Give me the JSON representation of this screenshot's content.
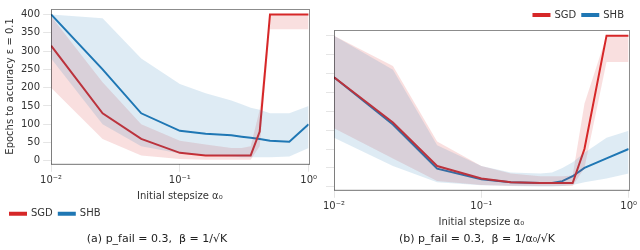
{
  "chart_data": [
    {
      "type": "line",
      "title": "(a) p_fail = 0.3,  β = 1/√K",
      "xlabel": "Initial stepsize α₀",
      "ylabel": "Epochs to accuracy ε = 0.1",
      "log": "x",
      "grid": false,
      "legend": "lower left",
      "xlim": [
        0.01,
        1
      ],
      "xticks": [
        {
          "value": 0.01,
          "label": "10⁻²"
        },
        {
          "value": 0.1,
          "label": "10⁻¹"
        },
        {
          "value": 1,
          "label": "10⁰"
        }
      ],
      "ylim": [
        -8,
        415
      ],
      "yticks": [
        0,
        50,
        100,
        150,
        200,
        250,
        300,
        350,
        400
      ],
      "x": [
        0.01,
        0.025118864315095794,
        0.05011872336272722,
        0.1,
        0.15848931924611134,
        0.25118864315095796,
        0.3019951720402016,
        0.35481338923357547,
        0.4168693834703354,
        0.5011872336272722,
        0.7079457843841379,
        1
      ],
      "series": [
        {
          "name": "SGD",
          "color": "#d62728",
          "values": [
            315,
            130,
            60,
            22,
            15,
            15,
            15,
            15,
            80,
            400,
            400,
            400
          ],
          "lower": [
            200,
            60,
            15,
            5,
            3,
            3,
            3,
            3,
            40,
            360,
            360,
            360
          ],
          "upper": [
            395,
            215,
            100,
            55,
            45,
            35,
            35,
            40,
            140,
            400,
            400,
            400
          ]
        },
        {
          "name": "SHB",
          "color": "#1f77b4",
          "values": [
            400,
            250,
            130,
            82,
            74,
            70,
            66,
            63,
            60,
            55,
            52,
            100
          ],
          "lower": [
            280,
            100,
            40,
            20,
            15,
            12,
            10,
            10,
            10,
            10,
            12,
            35
          ],
          "upper": [
            400,
            390,
            280,
            210,
            185,
            165,
            155,
            145,
            140,
            130,
            130,
            150
          ]
        }
      ]
    },
    {
      "type": "line",
      "title": "(b) p_fail = 0.3,  β = 1/α₀/√K",
      "xlabel": "Initial stepsize α₀",
      "log": "x",
      "grid": false,
      "legend": "upper right",
      "tick_labels": "x",
      "xlim": [
        0.01,
        1
      ],
      "xticks": [
        {
          "value": 0.01,
          "label": "10⁻²"
        },
        {
          "value": 0.1,
          "label": "10⁻¹"
        },
        {
          "value": 1,
          "label": "10⁰"
        }
      ],
      "ylim": [
        -8,
        415
      ],
      "yticks": [
        0,
        50,
        100,
        150,
        200,
        250,
        300,
        350,
        400
      ],
      "x": [
        0.01,
        0.025118864315095794,
        0.05011872336272722,
        0.1,
        0.15848931924611134,
        0.25118864315095796,
        0.3019951720402016,
        0.35481338923357547,
        0.4168693834703354,
        0.5011872336272722,
        0.7079457843841379,
        1
      ],
      "series": [
        {
          "name": "SGD",
          "color": "#d62728",
          "values": [
            290,
            170,
            55,
            22,
            12,
            10,
            10,
            10,
            10,
            100,
            400,
            400
          ],
          "lower": [
            155,
            75,
            15,
            5,
            3,
            2,
            2,
            2,
            2,
            50,
            330,
            330
          ],
          "upper": [
            400,
            320,
            120,
            55,
            35,
            28,
            28,
            28,
            30,
            220,
            400,
            400
          ]
        },
        {
          "name": "SHB",
          "color": "#1f77b4",
          "values": [
            290,
            165,
            48,
            20,
            12,
            10,
            10,
            15,
            28,
            50,
            75,
            100
          ],
          "lower": [
            130,
            55,
            12,
            4,
            2,
            1,
            1,
            2,
            5,
            12,
            22,
            35
          ],
          "upper": [
            400,
            310,
            110,
            55,
            38,
            35,
            38,
            50,
            65,
            90,
            130,
            148
          ]
        }
      ]
    }
  ]
}
